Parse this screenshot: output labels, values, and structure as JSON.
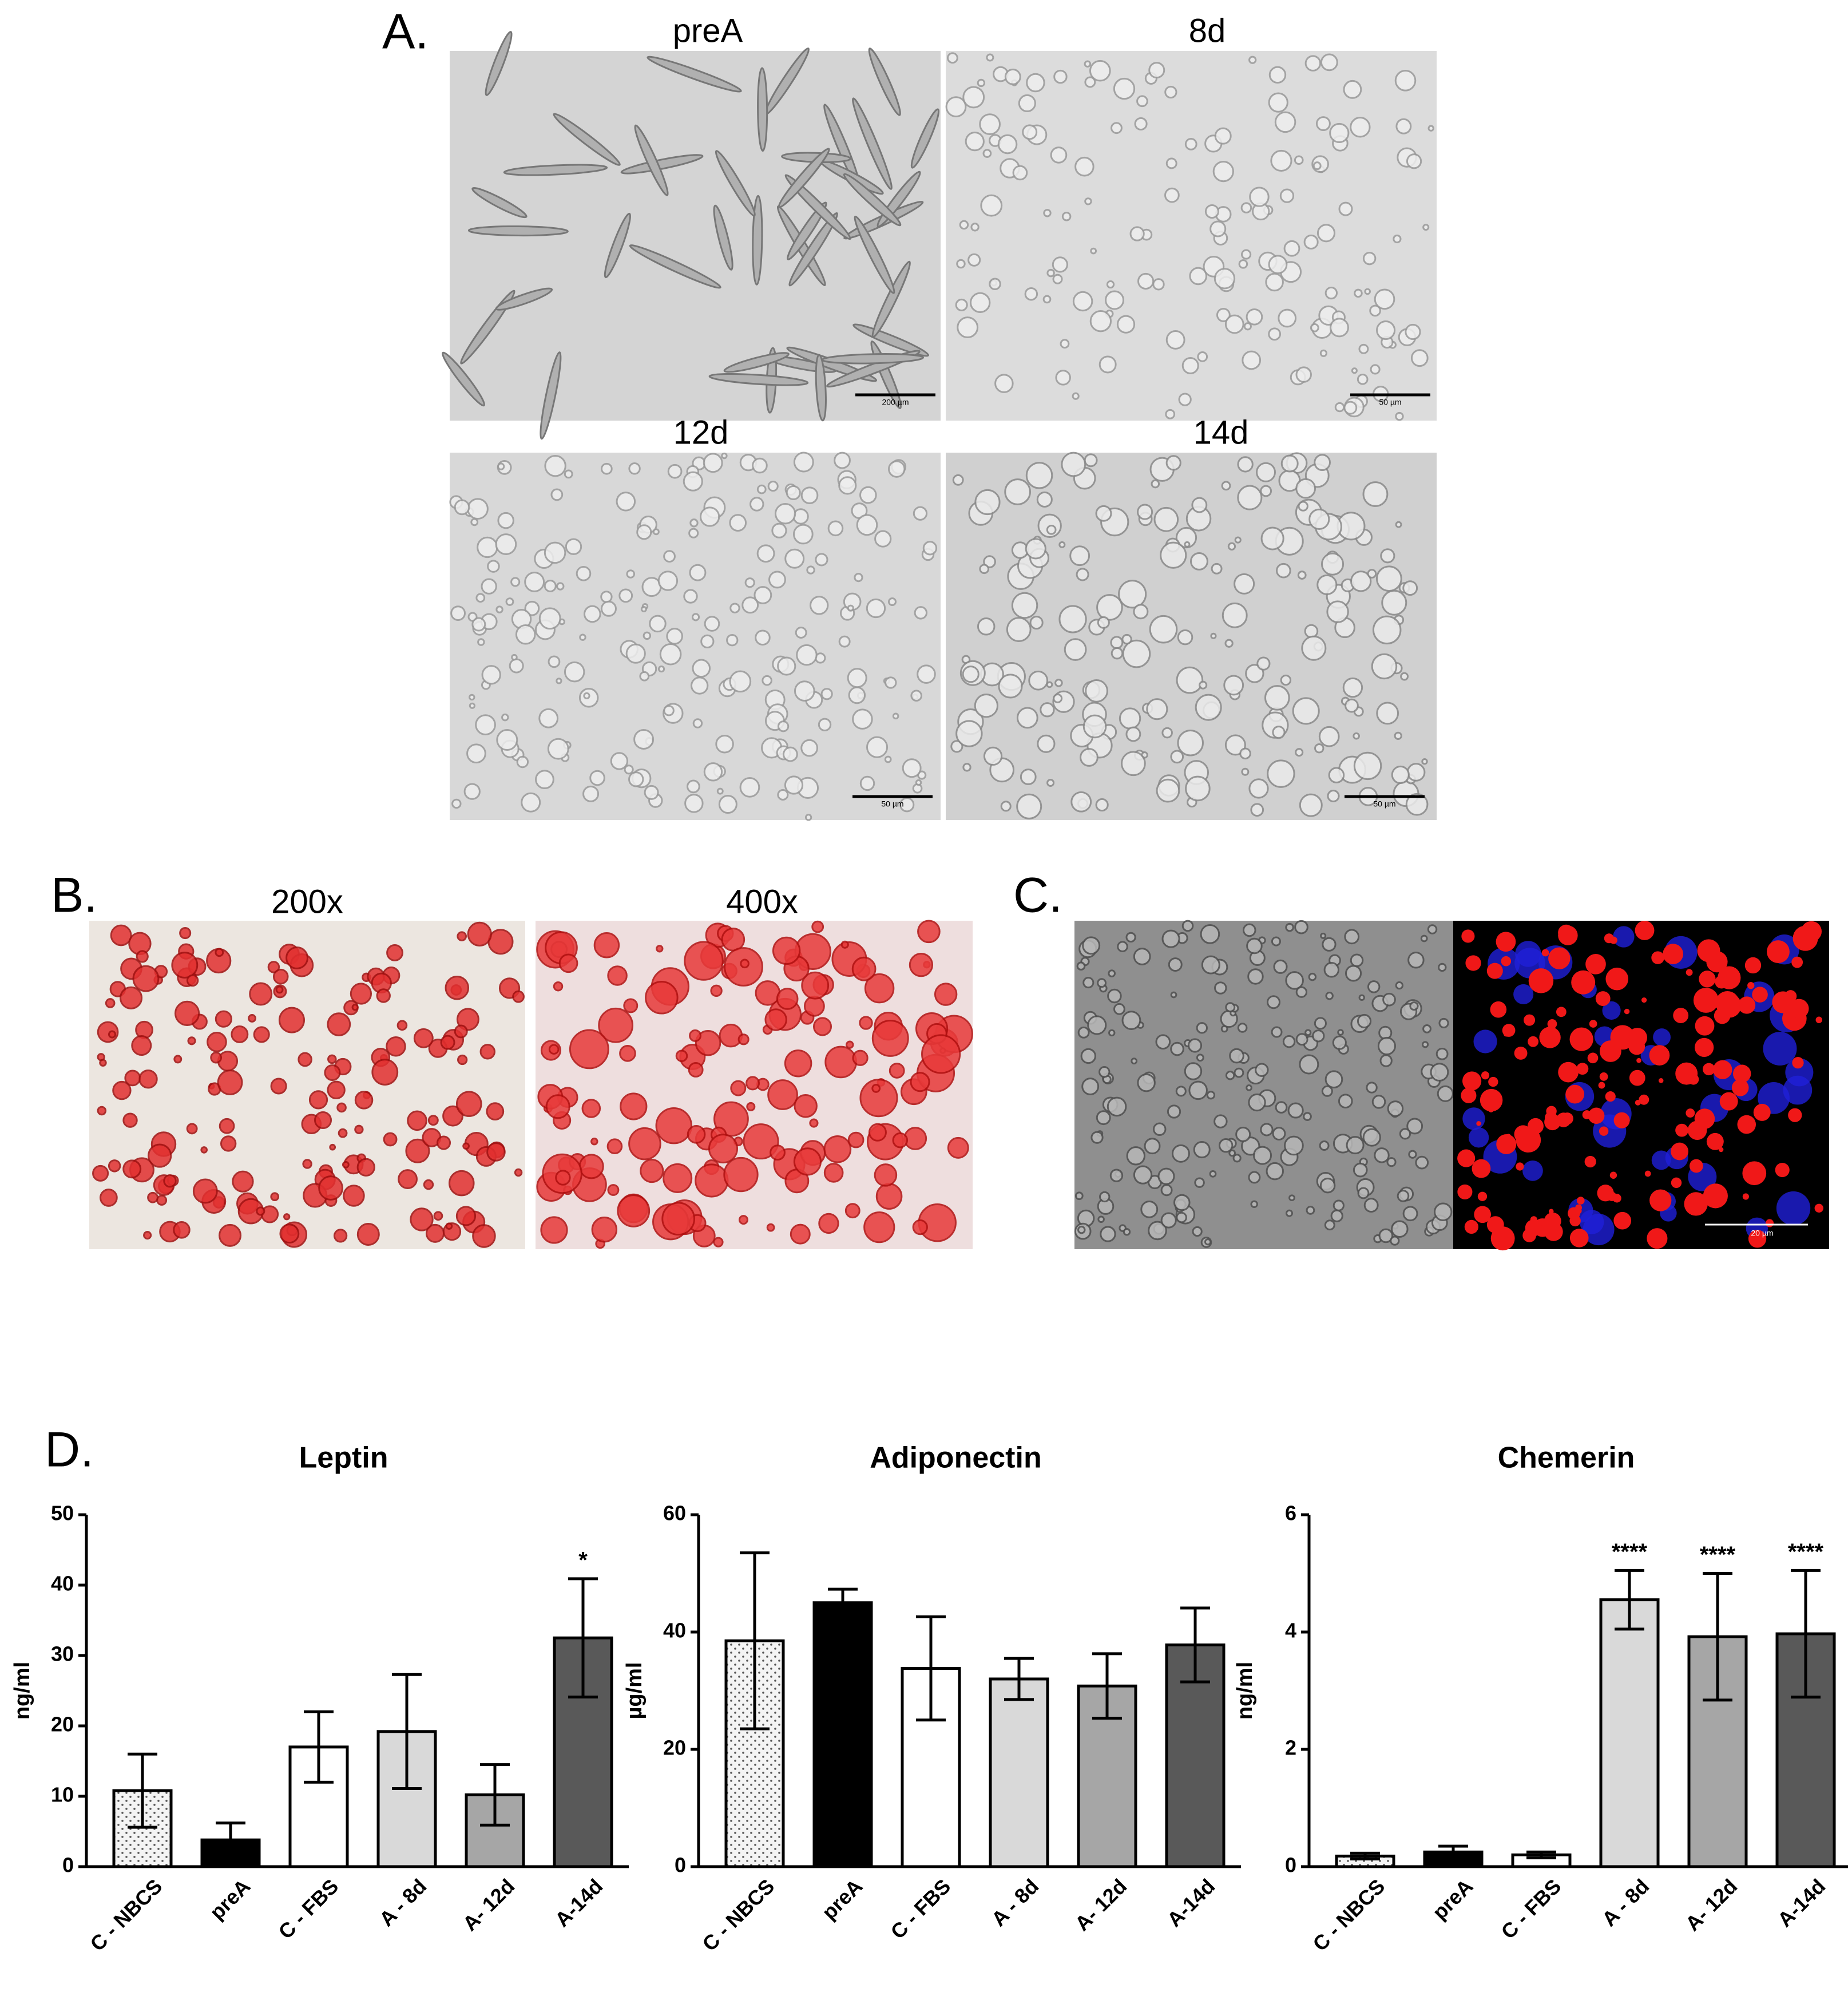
{
  "panels": {
    "a": {
      "label": "A.",
      "captions": [
        "preA",
        "8d",
        "12d",
        "14d"
      ],
      "scale_bars": [
        "200 µm",
        "50 µm",
        "50 µm",
        "50 µm"
      ]
    },
    "b": {
      "label": "B.",
      "captions": [
        "200x",
        "400x"
      ]
    },
    "c": {
      "label": "C.",
      "scale_bar": "20 µm"
    },
    "d": {
      "label": "D."
    }
  },
  "chart_data": [
    {
      "type": "bar",
      "title": "Leptin",
      "y_label": "ng/ml",
      "categories": [
        "C - NBCS",
        "preA",
        "C - FBS",
        "A - 8d",
        "A- 12d",
        "A-14d"
      ],
      "values": [
        10.8,
        3.8,
        17,
        19.2,
        10.2,
        32.5
      ],
      "errors": [
        5.2,
        2.4,
        5.0,
        8.1,
        4.3,
        8.4
      ],
      "colors": [
        "#f0f0f0",
        "#000000",
        "#ffffff",
        "#d9d9d9",
        "#a6a6a6",
        "#595959"
      ],
      "ylim": [
        0,
        50
      ],
      "yticks": [
        0,
        10,
        20,
        30,
        40,
        50
      ],
      "annotations": [
        {
          "index": 5,
          "text": "*"
        }
      ]
    },
    {
      "type": "bar",
      "title": "Adiponectin",
      "y_label": "µg/ml",
      "categories": [
        "C - NBCS",
        "preA",
        "C - FBS",
        "A - 8d",
        "A- 12d",
        "A-14d"
      ],
      "values": [
        38.5,
        45,
        33.8,
        32,
        30.8,
        37.8
      ],
      "errors": [
        15,
        2.3,
        8.8,
        3.5,
        5.5,
        6.3
      ],
      "colors": [
        "#f0f0f0",
        "#000000",
        "#ffffff",
        "#d9d9d9",
        "#a6a6a6",
        "#595959"
      ],
      "ylim": [
        0,
        60
      ],
      "yticks": [
        0,
        20,
        40,
        60
      ]
    },
    {
      "type": "bar",
      "title": "Chemerin",
      "y_label": "ng/ml",
      "categories": [
        "C - NBCS",
        "preA",
        "C - FBS",
        "A - 8d",
        "A- 12d",
        "A-14d"
      ],
      "values": [
        0.18,
        0.25,
        0.2,
        4.55,
        3.92,
        3.97
      ],
      "errors": [
        0.05,
        0.1,
        0.05,
        0.5,
        1.08,
        1.08
      ],
      "colors": [
        "#f0f0f0",
        "#000000",
        "#ffffff",
        "#d9d9d9",
        "#a6a6a6",
        "#595959"
      ],
      "ylim": [
        0,
        6
      ],
      "yticks": [
        0,
        2,
        4,
        6
      ],
      "annotations": [
        {
          "index": 3,
          "text": "****"
        },
        {
          "index": 4,
          "text": "****"
        },
        {
          "index": 5,
          "text": "****"
        }
      ]
    }
  ]
}
